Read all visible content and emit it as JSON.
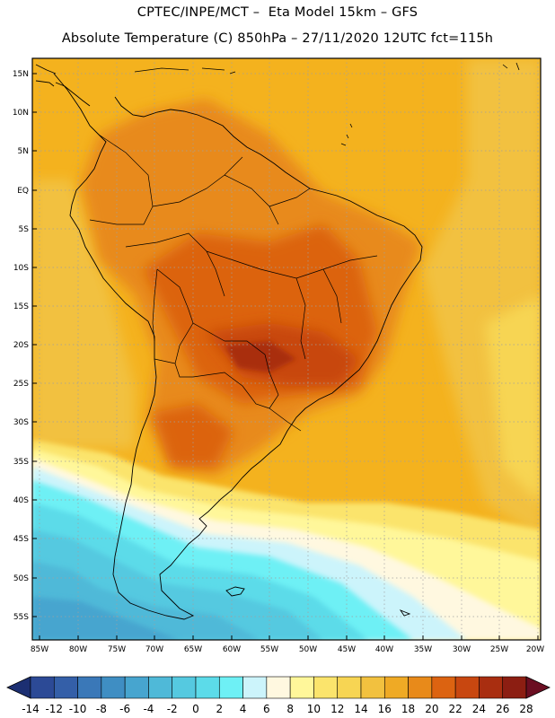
{
  "header": {
    "line1": "CPTEC/INPE/MCT –  Eta Model 15km – GFS",
    "line2": "Absolute Temperature (C) 850hPa – 27/11/2020 12UTC fct=115h"
  },
  "map": {
    "latitude_labels": [
      "15N",
      "10N",
      "5N",
      "EQ",
      "5S",
      "10S",
      "15S",
      "20S",
      "25S",
      "30S",
      "35S",
      "40S",
      "45S",
      "50S",
      "55S"
    ],
    "longitude_labels": [
      "85W",
      "80W",
      "75W",
      "70W",
      "65W",
      "60W",
      "55W",
      "50W",
      "45W",
      "40W",
      "35W",
      "30W",
      "25W",
      "20W"
    ]
  },
  "colorbar": {
    "labels": [
      "-14",
      "-12",
      "-10",
      "-8",
      "-6",
      "-4",
      "-2",
      "0",
      "2",
      "4",
      "6",
      "8",
      "10",
      "12",
      "14",
      "16",
      "18",
      "20",
      "22",
      "24",
      "26",
      "28"
    ],
    "colors": [
      "#2c4a96",
      "#345fa8",
      "#3a78b8",
      "#3f8ec3",
      "#47a5cf",
      "#4fb9d8",
      "#55c9e0",
      "#5cdbe9",
      "#6ef0f5",
      "#ccf4fb",
      "#fff8e0",
      "#fff79a",
      "#fbe46c",
      "#f7d553",
      "#f2c13f",
      "#efaa25",
      "#e88a1a",
      "#dc6311",
      "#c84710",
      "#a92e10",
      "#8c1e12"
    ],
    "low_color": "#1c2f72",
    "high_color": "#6b0e22"
  }
}
